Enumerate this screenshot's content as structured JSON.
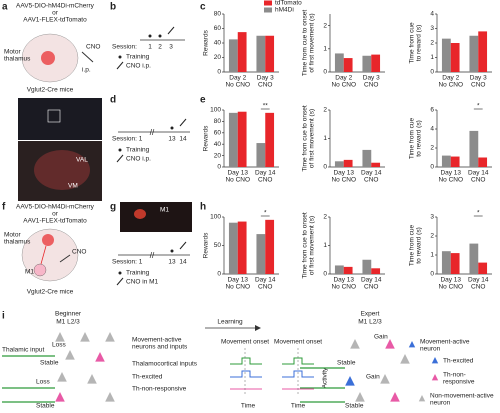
{
  "figure": {
    "a": {
      "label": "a",
      "lines": [
        "AAV5-DIO-hM4Di-mCherry",
        "or",
        "AAV1-FLEX-tdTomato"
      ],
      "region": [
        "Motor",
        "thalamus"
      ],
      "route": "i.p.",
      "drug": "CNO",
      "mice": "Vglut2-Cre mice",
      "areas": [
        "VAL",
        "VM"
      ]
    },
    "b": {
      "label": "b",
      "session": "Session:",
      "days": [
        "1",
        "2",
        "3"
      ],
      "training": "Training",
      "cno": "CNO i.p."
    },
    "c": {
      "label": "c"
    },
    "d": {
      "label": "d",
      "session": "Session: 1",
      "days": [
        "13",
        "14"
      ],
      "training": "Training",
      "cno": "CNO i.p."
    },
    "e": {
      "label": "e"
    },
    "f": {
      "label": "f",
      "lines": [
        "AAV5-DIO-hM4Di-mCherry",
        "or",
        "AAV1-FLEX-tdTomato"
      ],
      "region": [
        "Motor",
        "thalamus"
      ],
      "target": "M1",
      "drug": "CNO",
      "mice": "Vglut2-Cre mice"
    },
    "g": {
      "label": "g",
      "area": "M1",
      "session": "Session: 1",
      "days": [
        "13",
        "14"
      ],
      "training": "Training",
      "cno": "CNO in M1"
    },
    "h": {
      "label": "h"
    },
    "i": {
      "label": "i",
      "beginner": "Beginner",
      "layer": "M1 L2/3",
      "thalamic_input": "Thalamic input",
      "loss": "Loss",
      "stable": "Stable",
      "learning": "Learning",
      "movement_active": [
        "Movement-active",
        "neurons and inputs"
      ],
      "onset": "Movement onset",
      "thalamocortical": "Thalamocortical inputs",
      "th_excited": "Th-excited",
      "th_non": "Th-non-responsive",
      "time": "Time",
      "activity": "Activity",
      "expert": "Expert",
      "gain": "Gain",
      "legend": {
        "active": [
          "Movement-active",
          "neuron"
        ],
        "excited": "Th-excited",
        "non": [
          "Th-non-",
          "responsive"
        ],
        "inactive": [
          "Non-movement-active",
          "neuron"
        ]
      }
    }
  },
  "chart_data": [
    {
      "type": "bar",
      "ylabel": [
        "Rewards"
      ],
      "categories": [
        [
          "Day 2",
          "No CNO"
        ],
        [
          "Day 3",
          "CNO"
        ]
      ],
      "ylim": [
        0,
        80
      ],
      "yticks": [
        0,
        20,
        40,
        60,
        80
      ],
      "legend": "top",
      "series": [
        {
          "name": "hM4Di",
          "color": "#8c8c8c",
          "values": [
            45,
            50
          ]
        },
        {
          "name": "tdTomato",
          "color": "#e8262a",
          "values": [
            55,
            50
          ]
        }
      ]
    },
    {
      "type": "bar",
      "ylabel": [
        "Time from cue to onset",
        "of first movement (s)"
      ],
      "categories": [
        [
          "Day 2",
          "No CNO"
        ],
        [
          "Day 3",
          "CNO"
        ]
      ],
      "ylim": [
        0,
        2.5
      ],
      "yticks": [
        0,
        1,
        2
      ],
      "series": [
        {
          "color": "#8c8c8c",
          "values": [
            0.8,
            0.7
          ]
        },
        {
          "color": "#e8262a",
          "values": [
            0.6,
            0.75
          ]
        }
      ]
    },
    {
      "type": "bar",
      "ylabel": [
        "Time from cue",
        "to reward (s)"
      ],
      "categories": [
        [
          "Day 2",
          "No CNO"
        ],
        [
          "Day 3",
          "CNO"
        ]
      ],
      "ylim": [
        0,
        4
      ],
      "yticks": [
        0,
        1,
        2,
        3,
        4
      ],
      "series": [
        {
          "color": "#8c8c8c",
          "values": [
            2.3,
            2.5
          ]
        },
        {
          "color": "#e8262a",
          "values": [
            2.0,
            2.8
          ]
        }
      ]
    },
    {
      "type": "bar",
      "ylabel": [
        "Rewards"
      ],
      "categories": [
        [
          "Day 13",
          "No CNO"
        ],
        [
          "Day 14",
          "CNO"
        ]
      ],
      "ylim": [
        0,
        100
      ],
      "yticks": [
        0,
        20,
        40,
        60,
        80,
        100
      ],
      "series": [
        {
          "color": "#8c8c8c",
          "values": [
            95,
            42
          ]
        },
        {
          "color": "#e8262a",
          "values": [
            97,
            95
          ]
        }
      ],
      "annotations": [
        {
          "text": "**",
          "category": 1
        }
      ]
    },
    {
      "type": "bar",
      "ylabel": [
        "Time from cue to onset",
        "of first movement (s)"
      ],
      "categories": [
        [
          "Day 13",
          "No CNO"
        ],
        [
          "Day 14",
          "CNO"
        ]
      ],
      "ylim": [
        0,
        2
      ],
      "yticks": [
        0,
        1,
        2
      ],
      "series": [
        {
          "color": "#8c8c8c",
          "values": [
            0.2,
            0.6
          ]
        },
        {
          "color": "#e8262a",
          "values": [
            0.25,
            0.15
          ]
        }
      ]
    },
    {
      "type": "bar",
      "ylabel": [
        "Time from cue",
        "to reward (s)"
      ],
      "categories": [
        [
          "Day 13",
          "No CNO"
        ],
        [
          "Day 14",
          "CNO"
        ]
      ],
      "ylim": [
        0,
        6
      ],
      "yticks": [
        0,
        2,
        4,
        6
      ],
      "series": [
        {
          "color": "#8c8c8c",
          "values": [
            1.2,
            3.8
          ]
        },
        {
          "color": "#e8262a",
          "values": [
            1.1,
            1.0
          ]
        }
      ],
      "annotations": [
        {
          "text": "*",
          "category": 1
        }
      ]
    },
    {
      "type": "bar",
      "ylabel": [
        "Rewards"
      ],
      "categories": [
        [
          "Day 13",
          "No CNO"
        ],
        [
          "Day 14",
          "CNO"
        ]
      ],
      "ylim": [
        0,
        100
      ],
      "yticks": [
        0,
        50,
        100
      ],
      "series": [
        {
          "color": "#8c8c8c",
          "values": [
            90,
            70
          ]
        },
        {
          "color": "#e8262a",
          "values": [
            92,
            95
          ]
        }
      ],
      "annotations": [
        {
          "text": "*",
          "category": 1
        }
      ]
    },
    {
      "type": "bar",
      "ylabel": [
        "Time from cue to onset",
        "of first movement (s)"
      ],
      "categories": [
        [
          "Day 13",
          "No CNO"
        ],
        [
          "Day 14",
          "CNO"
        ]
      ],
      "ylim": [
        0,
        2
      ],
      "yticks": [
        0,
        1,
        2
      ],
      "series": [
        {
          "color": "#8c8c8c",
          "values": [
            0.3,
            0.5
          ]
        },
        {
          "color": "#e8262a",
          "values": [
            0.25,
            0.2
          ]
        }
      ]
    },
    {
      "type": "bar",
      "ylabel": [
        "Time from cue",
        "to reward (s)"
      ],
      "categories": [
        [
          "Day 13",
          "No CNO"
        ],
        [
          "Day 14",
          "CNO"
        ]
      ],
      "ylim": [
        0,
        3
      ],
      "yticks": [
        0,
        1,
        2,
        3
      ],
      "series": [
        {
          "color": "#8c8c8c",
          "values": [
            1.2,
            1.6
          ]
        },
        {
          "color": "#e8262a",
          "values": [
            1.1,
            0.6
          ]
        }
      ],
      "annotations": [
        {
          "text": "*",
          "category": 1
        }
      ]
    }
  ]
}
